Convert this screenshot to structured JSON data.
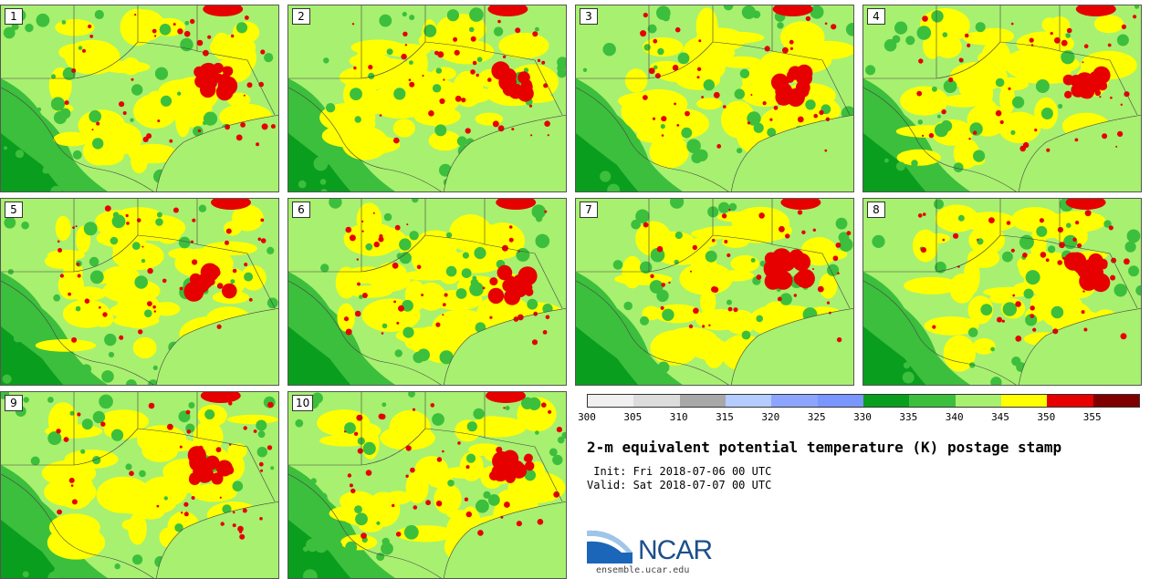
{
  "panels": [
    {
      "label": "1"
    },
    {
      "label": "2"
    },
    {
      "label": "3"
    },
    {
      "label": "4"
    },
    {
      "label": "5"
    },
    {
      "label": "6"
    },
    {
      "label": "7"
    },
    {
      "label": "8"
    },
    {
      "label": "9"
    },
    {
      "label": "10"
    }
  ],
  "colorbar": {
    "colors": [
      "#f0f0f0",
      "#dcdcdc",
      "#a8a8a8",
      "#b4ccff",
      "#8ca5ff",
      "#7a96ff",
      "#0a9e1e",
      "#3cbf3c",
      "#a8f070",
      "#ffff00",
      "#e60000",
      "#800000"
    ],
    "ticks": [
      "300",
      "305",
      "310",
      "315",
      "320",
      "325",
      "330",
      "335",
      "340",
      "345",
      "350",
      "355"
    ]
  },
  "title": "2-m equivalent potential temperature (K) postage stamp",
  "init_line": " Init: Fri 2018-07-06 00 UTC",
  "valid_line": "Valid: Sat 2018-07-07 00 UTC",
  "logo": {
    "name": "NCAR",
    "url": "ensemble.ucar.edu"
  }
}
